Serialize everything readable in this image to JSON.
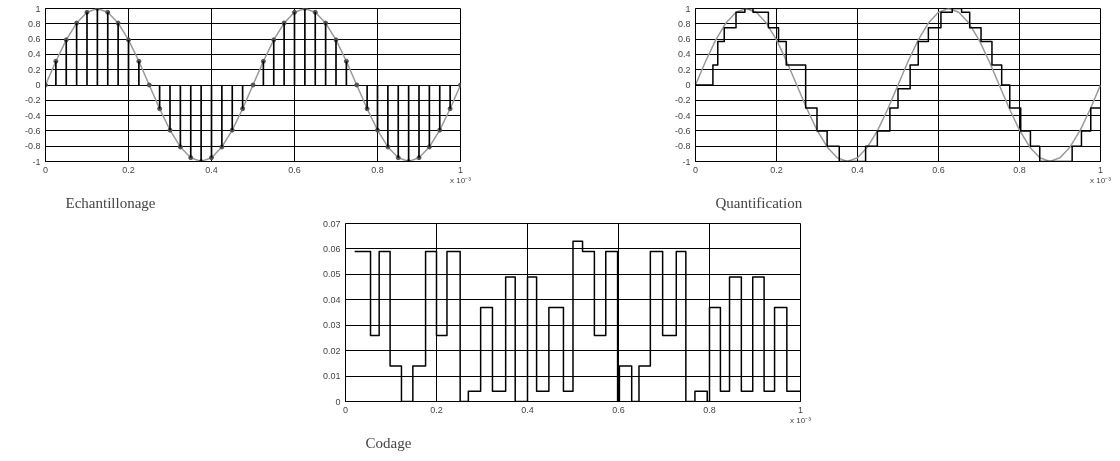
{
  "chart_data": [
    {
      "type": "bar",
      "title": "Echantillonage",
      "xlabel": "x 10⁻³",
      "xlim": [
        0,
        1
      ],
      "ylim": [
        -1,
        1
      ],
      "xticks": [
        0,
        0.2,
        0.4,
        0.6,
        0.8,
        1
      ],
      "yticks": [
        -1,
        -0.8,
        -0.6,
        -0.4,
        -0.2,
        0,
        0.2,
        0.4,
        0.6,
        0.8,
        1
      ],
      "grid": true,
      "marker": "circle",
      "x": [
        0,
        0.025,
        0.05,
        0.075,
        0.1,
        0.125,
        0.15,
        0.175,
        0.2,
        0.225,
        0.25,
        0.275,
        0.3,
        0.325,
        0.35,
        0.375,
        0.4,
        0.425,
        0.45,
        0.475,
        0.5,
        0.525,
        0.55,
        0.575,
        0.6,
        0.625,
        0.65,
        0.675,
        0.7,
        0.725,
        0.75,
        0.775,
        0.8,
        0.825,
        0.85,
        0.875,
        0.9,
        0.925,
        0.95,
        0.975,
        1
      ],
      "series": [
        {
          "type": "line",
          "color": "#999999",
          "values": [
            0,
            0.31,
            0.59,
            0.81,
            0.95,
            1,
            0.95,
            0.81,
            0.59,
            0.31,
            0,
            -0.31,
            -0.59,
            -0.81,
            -0.95,
            -1,
            -0.95,
            -0.81,
            -0.59,
            -0.31,
            0,
            0.31,
            0.59,
            0.81,
            0.95,
            1,
            0.95,
            0.81,
            0.59,
            0.31,
            0,
            -0.31,
            -0.59,
            -0.81,
            -0.95,
            -1,
            -0.95,
            -0.81,
            -0.59,
            -0.31,
            0
          ]
        },
        {
          "type": "bar",
          "color": "#000000",
          "values": [
            0,
            0.31,
            0.59,
            0.81,
            0.95,
            1,
            0.95,
            0.81,
            0.59,
            0.31,
            0,
            -0.31,
            -0.59,
            -0.81,
            -0.95,
            -1,
            -0.95,
            -0.81,
            -0.59,
            -0.31,
            0,
            0.31,
            0.59,
            0.81,
            0.95,
            1,
            0.95,
            0.81,
            0.59,
            0.31,
            0,
            -0.31,
            -0.59,
            -0.81,
            -0.95,
            -1,
            -0.95,
            -0.81,
            -0.59,
            -0.31,
            0
          ]
        }
      ]
    },
    {
      "type": "line",
      "title": "Quantification",
      "xlabel": "x 10⁻³",
      "xlim": [
        0,
        1
      ],
      "ylim": [
        -1,
        1
      ],
      "xticks": [
        0,
        0.2,
        0.4,
        0.6,
        0.8,
        1
      ],
      "yticks": [
        -1,
        -0.8,
        -0.6,
        -0.4,
        -0.2,
        0,
        0.2,
        0.4,
        0.6,
        0.8,
        1
      ],
      "grid": true,
      "x": [
        0,
        0.025,
        0.05,
        0.075,
        0.1,
        0.125,
        0.15,
        0.175,
        0.2,
        0.225,
        0.25,
        0.275,
        0.3,
        0.325,
        0.35,
        0.375,
        0.4,
        0.425,
        0.45,
        0.475,
        0.5,
        0.525,
        0.55,
        0.575,
        0.6,
        0.625,
        0.65,
        0.675,
        0.7,
        0.725,
        0.75,
        0.775,
        0.8,
        0.825,
        0.85,
        0.875,
        0.9,
        0.925,
        0.95,
        0.975,
        1
      ],
      "series": [
        {
          "type": "line",
          "color": "#999999",
          "values": [
            0,
            0.31,
            0.59,
            0.81,
            0.95,
            1,
            0.95,
            0.81,
            0.59,
            0.31,
            0,
            -0.31,
            -0.59,
            -0.81,
            -0.95,
            -1,
            -0.95,
            -0.81,
            -0.59,
            -0.31,
            0,
            0.31,
            0.59,
            0.81,
            0.95,
            1,
            0.95,
            0.81,
            0.59,
            0.31,
            0,
            -0.31,
            -0.59,
            -0.81,
            -0.95,
            -1,
            -0.95,
            -0.81,
            -0.59,
            -0.31,
            0
          ]
        },
        {
          "type": "step",
          "color": "#000000",
          "x": [
            0,
            0.043,
            0.055,
            0.071,
            0.1,
            0.122,
            0.142,
            0.18,
            0.205,
            0.224,
            0.272,
            0.3,
            0.325,
            0.355,
            0.42,
            0.449,
            0.48,
            0.5,
            0.53,
            0.55,
            0.575,
            0.606,
            0.634,
            0.657,
            0.677,
            0.705,
            0.732,
            0.756,
            0.776,
            0.803,
            0.827,
            0.85,
            0.93,
            0.953,
            0.976,
            1
          ],
          "values": [
            0,
            0.26,
            0.57,
            0.75,
            0.95,
            1,
            0.95,
            0.75,
            0.57,
            0.26,
            -0.3,
            -0.6,
            -0.8,
            -1,
            -0.8,
            -0.6,
            -0.3,
            -0.05,
            0.26,
            0.57,
            0.75,
            0.95,
            1,
            0.95,
            0.75,
            0.57,
            0.26,
            0,
            -0.3,
            -0.6,
            -0.8,
            -1,
            -0.8,
            -0.6,
            -0.3,
            -0.3
          ]
        }
      ]
    },
    {
      "type": "step",
      "title": "Codage",
      "xlabel": "x 10⁻³",
      "xlim": [
        0,
        1
      ],
      "ylim": [
        0,
        0.07
      ],
      "xticks": [
        0,
        0.2,
        0.4,
        0.6,
        0.8,
        1
      ],
      "yticks": [
        0,
        0.01,
        0.02,
        0.03,
        0.04,
        0.05,
        0.06,
        0.07
      ],
      "grid": true,
      "x": [
        0.02,
        0.055,
        0.074,
        0.098,
        0.123,
        0.148,
        0.176,
        0.2,
        0.223,
        0.252,
        0.27,
        0.297,
        0.323,
        0.352,
        0.373,
        0.4,
        0.42,
        0.447,
        0.479,
        0.5,
        0.521,
        0.547,
        0.572,
        0.598,
        0.602,
        0.629,
        0.645,
        0.67,
        0.697,
        0.727,
        0.748,
        0.768,
        0.795,
        0.8,
        0.824,
        0.844,
        0.87,
        0.895,
        0.92,
        0.943,
        0.97,
        1
      ],
      "series": [
        {
          "color": "#000000",
          "values": [
            0.059,
            0.026,
            0.059,
            0.014,
            0,
            0.014,
            0.059,
            0.026,
            0.059,
            0,
            0.004,
            0.037,
            0.004,
            0.049,
            0,
            0.049,
            0.004,
            0.037,
            0.004,
            0.063,
            0.059,
            0.026,
            0.059,
            0,
            0.014,
            0,
            0.014,
            0.059,
            0.026,
            0.059,
            0,
            0.004,
            0,
            0.037,
            0.004,
            0.049,
            0.004,
            0.049,
            0.004,
            0.037,
            0.004,
            0.004
          ]
        }
      ]
    }
  ]
}
